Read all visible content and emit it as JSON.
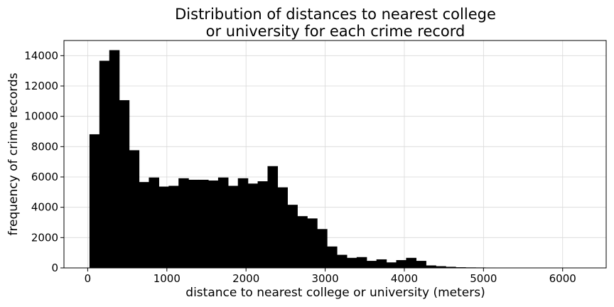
{
  "chart_data": {
    "type": "bar",
    "title_lines": [
      "Distribution of distances to nearest college",
      "or university for each crime record"
    ],
    "xlabel": "distance to nearest college or university (meters)",
    "ylabel": "frequency of crime records",
    "xlim": [
      -300,
      6550
    ],
    "ylim": [
      0,
      15000
    ],
    "xticks": [
      0,
      1000,
      2000,
      3000,
      4000,
      5000,
      6000
    ],
    "yticks": [
      0,
      2000,
      4000,
      6000,
      8000,
      10000,
      12000,
      14000
    ],
    "grid": true,
    "bin_width": 125,
    "bin_start": 25,
    "values": [
      8800,
      13650,
      14350,
      11050,
      7750,
      5650,
      5950,
      5350,
      5400,
      5900,
      5800,
      5800,
      5750,
      5950,
      5400,
      5900,
      5550,
      5700,
      6700,
      5300,
      4150,
      3400,
      3250,
      2550,
      1400,
      850,
      650,
      700,
      450,
      550,
      350,
      500,
      650,
      450,
      150,
      100,
      60,
      30,
      20,
      15,
      10,
      8,
      6,
      5,
      4,
      3,
      2,
      2,
      1,
      1,
      1
    ]
  }
}
